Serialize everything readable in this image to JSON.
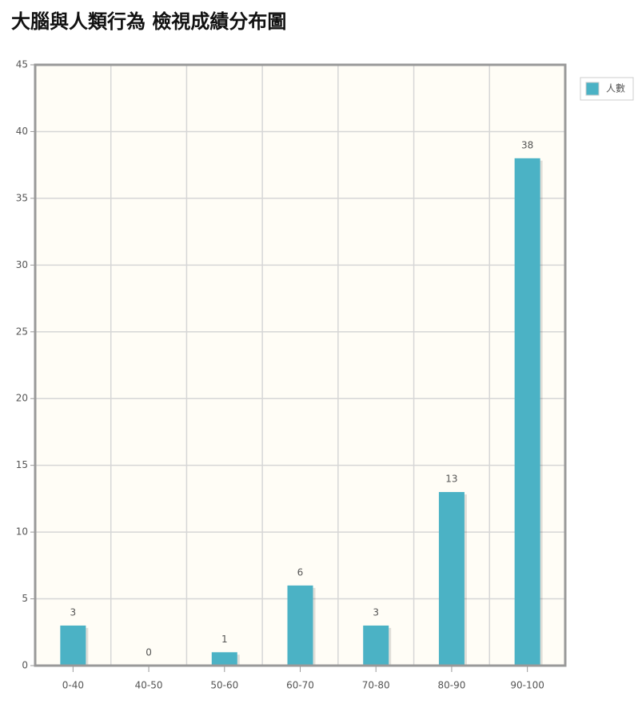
{
  "chart_data": {
    "type": "bar",
    "title": "大腦與人類行為 檢視成績分布圖",
    "categories": [
      "0-40",
      "40-50",
      "50-60",
      "60-70",
      "70-80",
      "80-90",
      "90-100"
    ],
    "series": [
      {
        "name": "人數",
        "color": "#4bb2c5",
        "values": [
          3,
          0,
          1,
          6,
          3,
          13,
          38
        ]
      }
    ],
    "ylim": [
      0,
      45
    ],
    "yticks": [
      0,
      5,
      10,
      15,
      20,
      25,
      30,
      35,
      40,
      45
    ],
    "grid": true,
    "legend": "right"
  }
}
